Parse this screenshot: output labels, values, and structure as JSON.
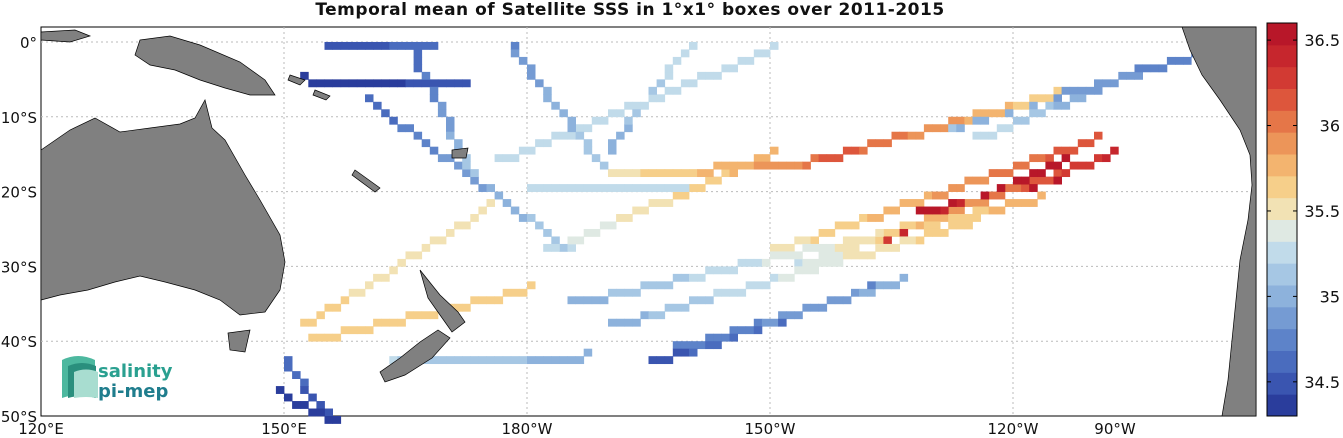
{
  "title": "Temporal mean of Satellite SSS in 1°x1° boxes over 2011-2015",
  "map": {
    "lon_range": [
      120,
      270
    ],
    "lat_range": [
      -50,
      2
    ],
    "y_ticks": [
      "0°",
      "10°S",
      "20°S",
      "30°S",
      "40°S",
      "50°S"
    ],
    "x_ticks": [
      "120°E",
      "150°E",
      "180°W",
      "150°W",
      "120°W",
      "90°W"
    ],
    "land_color": "#808080",
    "grid": "dotted"
  },
  "colorbar": {
    "min": 34.3,
    "max": 36.6,
    "ticks": [
      "34.5",
      "35",
      "35.5",
      "36",
      "36.5"
    ],
    "colors": [
      "#2a3d9c",
      "#3a55b0",
      "#4a6cbe",
      "#5d83c9",
      "#759bd3",
      "#8db2dc",
      "#a6c7e4",
      "#c1dbea",
      "#dfe9e3",
      "#f2e2b4",
      "#f6cf8a",
      "#f3b46f",
      "#ec9559",
      "#e57648",
      "#dd563c",
      "#d23a33",
      "#c6262d",
      "#b81729"
    ]
  },
  "logo": {
    "line1": "salinity",
    "line2": "pi-mep"
  }
}
